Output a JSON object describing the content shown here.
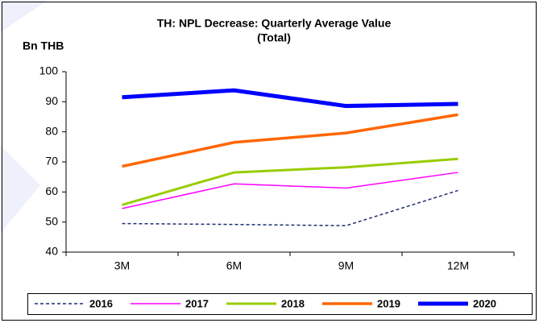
{
  "chart_data": {
    "type": "line",
    "title": "TH: NPL Decrease: Quarterly Average Value",
    "subtitle": "(Total)",
    "y_label": "Bn THB",
    "categories": [
      "3M",
      "6M",
      "9M",
      "12M"
    ],
    "series": [
      {
        "name": "2016",
        "color": "#1f2d6e",
        "line_style": "dashed",
        "values": [
          49.5,
          49.2,
          48.8,
          60.5
        ]
      },
      {
        "name": "2017",
        "color": "#ff00ff",
        "line_style": "solid",
        "values": [
          54.5,
          62.7,
          61.3,
          66.5
        ]
      },
      {
        "name": "2018",
        "color": "#99cc00",
        "line_style": "solid",
        "values": [
          55.7,
          66.5,
          68.2,
          71.0
        ]
      },
      {
        "name": "2019",
        "color": "#ff6600",
        "line_style": "solid",
        "values": [
          68.5,
          76.5,
          79.6,
          85.7
        ]
      },
      {
        "name": "2020",
        "color": "#0000ff",
        "line_style": "solid",
        "values": [
          91.5,
          93.8,
          88.6,
          89.3
        ]
      }
    ],
    "ylim": [
      40,
      100
    ],
    "yticks": [
      40,
      50,
      60,
      70,
      80,
      90,
      100
    ],
    "grid": false,
    "legend": "bottom"
  }
}
